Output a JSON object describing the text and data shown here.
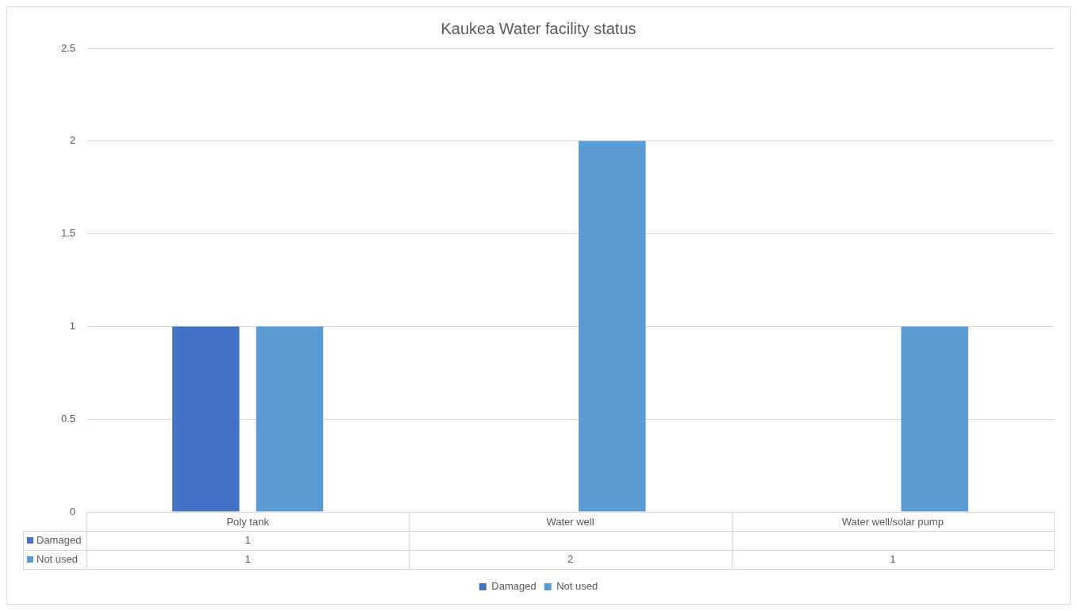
{
  "chart_data": {
    "type": "bar",
    "title": "Kaukea Water facility status",
    "categories": [
      "Poly tank",
      "Water well",
      "Water well/solar pump"
    ],
    "series": [
      {
        "name": "Damaged",
        "color": "#4472c4",
        "values": [
          1,
          null,
          null
        ]
      },
      {
        "name": "Not used",
        "color": "#5b9bd5",
        "values": [
          1,
          2,
          1
        ]
      }
    ],
    "ylim": [
      0,
      2.5
    ],
    "yticks": [
      0,
      0.5,
      1,
      1.5,
      2,
      2.5
    ],
    "grid": "y",
    "legend": "bottom",
    "data_labels": true
  }
}
